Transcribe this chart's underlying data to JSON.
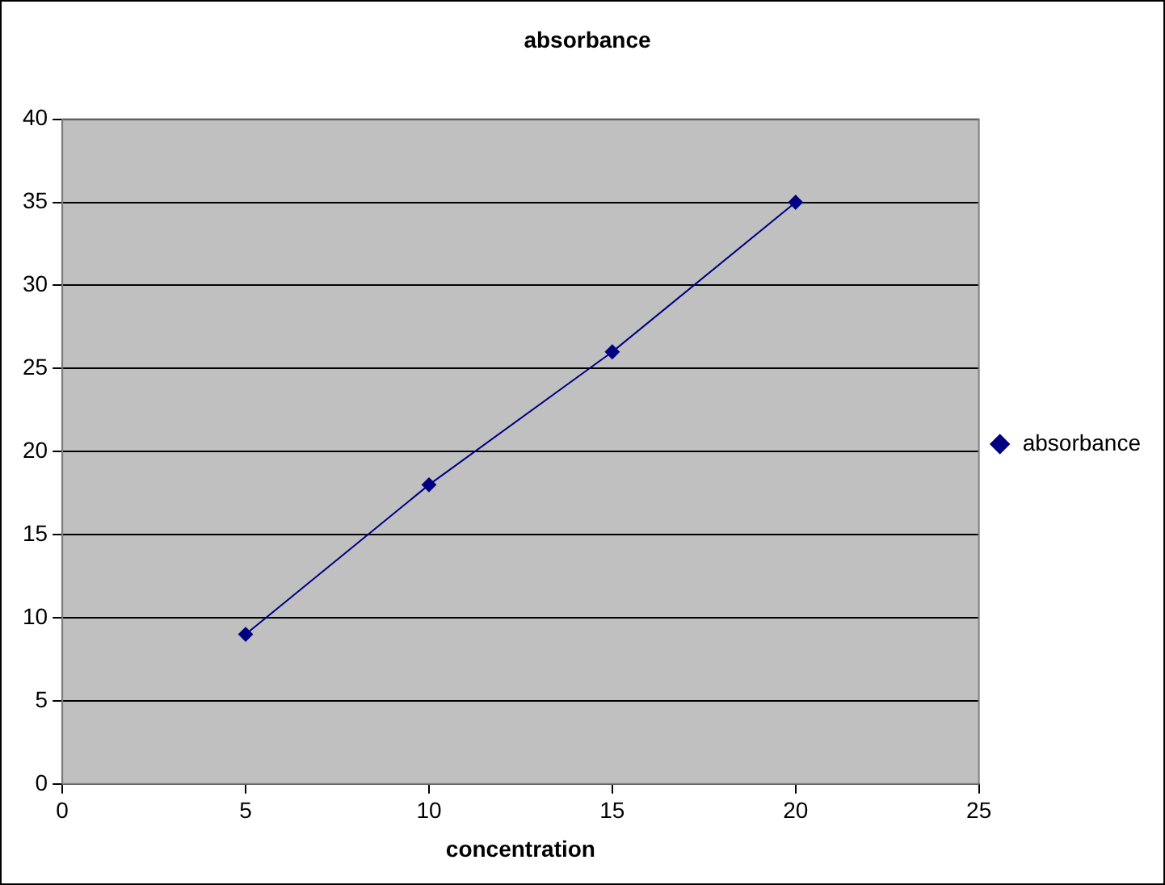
{
  "chart_data": {
    "type": "line",
    "title": "absorbance",
    "xlabel": "concentration",
    "x": [
      5,
      10,
      15,
      20
    ],
    "series": [
      {
        "name": "absorbance",
        "color": "#000080",
        "values": [
          9,
          18,
          26,
          35
        ]
      }
    ],
    "xlim": [
      0,
      25
    ],
    "xticks": [
      0,
      5,
      10,
      15,
      20,
      25
    ],
    "ylim": [
      0,
      40
    ],
    "yticks": [
      0,
      5,
      10,
      15,
      20,
      25,
      30,
      35,
      40
    ],
    "grid": "y",
    "legend": "right",
    "marker": "diamond",
    "line_style": "solid"
  }
}
